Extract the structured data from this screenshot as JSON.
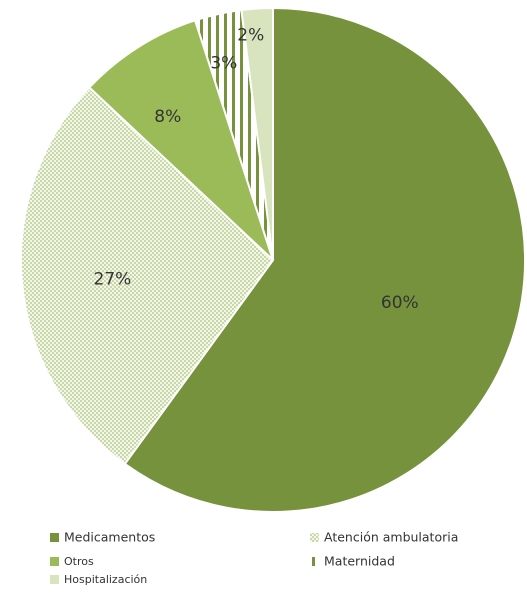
{
  "chart_data": {
    "type": "pie",
    "title": "",
    "slices": [
      {
        "name": "Medicamentos",
        "value": 60,
        "label": "60%",
        "color": "#76923c",
        "pattern": "solid"
      },
      {
        "name": "Atención ambulatoria",
        "value": 27,
        "label": "27%",
        "color": "#c4d79b",
        "pattern": "dots"
      },
      {
        "name": "Otros",
        "value": 8,
        "label": "8%",
        "color": "#9bbb59",
        "pattern": "solid"
      },
      {
        "name": "Maternidad",
        "value": 3,
        "label": "3%",
        "color": "#76923c",
        "pattern": "vertical-stripes"
      },
      {
        "name": "Hospitalización",
        "value": 2,
        "label": "2%",
        "color": "#d7e4bd",
        "pattern": "solid"
      }
    ],
    "legend": {
      "position": "bottom",
      "items": [
        {
          "label": "Medicamentos",
          "series": "Medicamentos"
        },
        {
          "label": "Atención ambulatoria",
          "series": "Atención ambulatoria"
        },
        {
          "label": "Otros",
          "series": "Otros"
        },
        {
          "label": "Maternidad",
          "series": "Maternidad"
        },
        {
          "label": "Hospitalización",
          "series": "Hospitalización"
        }
      ]
    }
  }
}
